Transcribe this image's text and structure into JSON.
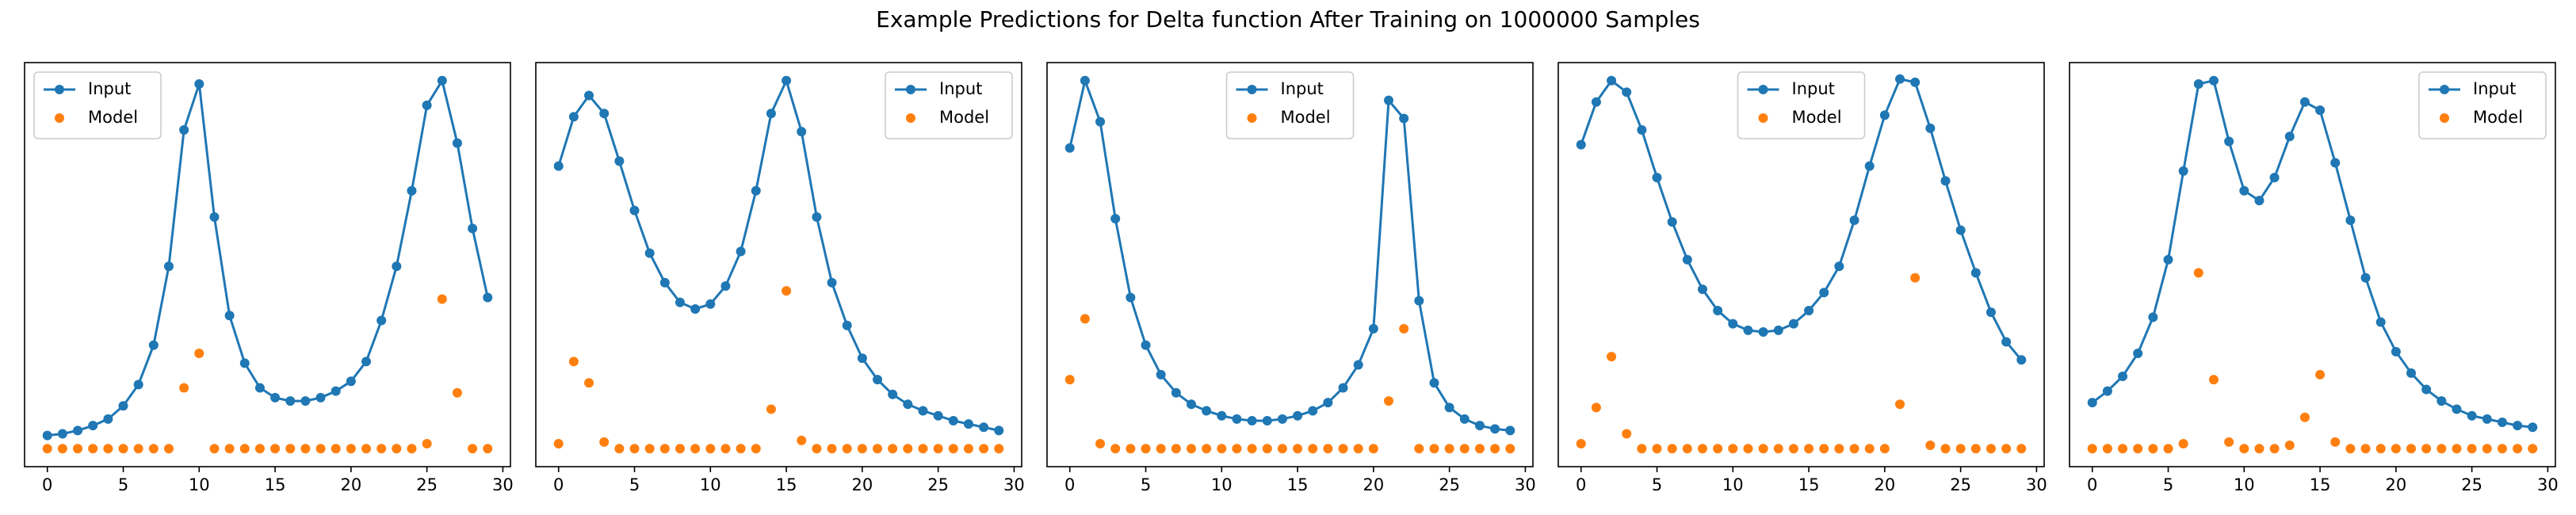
{
  "title": "Example Predictions for Delta function After Training on 1000000 Samples",
  "chart_data": [
    {
      "type": "line",
      "legend_loc": "upper left",
      "xlim": [
        -1.5,
        30.5
      ],
      "xticks": [
        0,
        5,
        10,
        15,
        20,
        25,
        30
      ],
      "ylim": [
        0,
        246
      ],
      "x": [
        0,
        1,
        2,
        3,
        4,
        5,
        6,
        7,
        8,
        9,
        10,
        11,
        12,
        13,
        14,
        15,
        16,
        17,
        18,
        19,
        20,
        21,
        22,
        23,
        24,
        25,
        26,
        27,
        28,
        29
      ],
      "series": [
        {
          "name": "Input",
          "color": "#1f77b4",
          "mode": "lines+markers",
          "values": [
            19,
            20,
            22,
            25,
            29,
            37,
            50,
            74,
            122,
            205,
            233,
            152,
            92,
            63,
            48,
            42,
            40,
            40,
            42,
            46,
            52,
            64,
            89,
            122,
            168,
            220,
            235,
            197,
            145,
            103
          ]
        },
        {
          "name": "Model",
          "color": "#ff7f0e",
          "mode": "markers",
          "values": [
            11,
            11,
            11,
            11,
            11,
            11,
            11,
            11,
            11,
            48,
            69,
            11,
            11,
            11,
            11,
            11,
            11,
            11,
            11,
            11,
            11,
            11,
            11,
            11,
            11,
            14,
            102,
            45,
            11,
            11
          ]
        }
      ]
    },
    {
      "type": "line",
      "legend_loc": "upper right",
      "xlim": [
        -1.5,
        30.5
      ],
      "xticks": [
        0,
        5,
        10,
        15,
        20,
        25,
        30
      ],
      "ylim": [
        0,
        246
      ],
      "x": [
        0,
        1,
        2,
        3,
        4,
        5,
        6,
        7,
        8,
        9,
        10,
        11,
        12,
        13,
        14,
        15,
        16,
        17,
        18,
        19,
        20,
        21,
        22,
        23,
        24,
        25,
        26,
        27,
        28,
        29
      ],
      "series": [
        {
          "name": "Input",
          "color": "#1f77b4",
          "mode": "lines+markers",
          "values": [
            183,
            213,
            226,
            215,
            186,
            156,
            130,
            112,
            100,
            96,
            99,
            110,
            131,
            168,
            215,
            235,
            204,
            152,
            112,
            86,
            66,
            53,
            44,
            38,
            34,
            31,
            28,
            26,
            24,
            22
          ]
        },
        {
          "name": "Model",
          "color": "#ff7f0e",
          "mode": "markers",
          "values": [
            14,
            64,
            51,
            15,
            11,
            11,
            11,
            11,
            11,
            11,
            11,
            11,
            11,
            11,
            35,
            107,
            16,
            11,
            11,
            11,
            11,
            11,
            11,
            11,
            11,
            11,
            11,
            11,
            11,
            11
          ]
        }
      ]
    },
    {
      "type": "line",
      "legend_loc": "upper center",
      "xlim": [
        -1.5,
        30.5
      ],
      "xticks": [
        0,
        5,
        10,
        15,
        20,
        25,
        30
      ],
      "ylim": [
        0,
        246
      ],
      "x": [
        0,
        1,
        2,
        3,
        4,
        5,
        6,
        7,
        8,
        9,
        10,
        11,
        12,
        13,
        14,
        15,
        16,
        17,
        18,
        19,
        20,
        21,
        22,
        23,
        24,
        25,
        26,
        27,
        28,
        29
      ],
      "series": [
        {
          "name": "Input",
          "color": "#1f77b4",
          "mode": "lines+markers",
          "values": [
            194,
            235,
            210,
            151,
            103,
            74,
            56,
            45,
            38,
            34,
            31,
            29,
            28,
            28,
            29,
            31,
            34,
            39,
            48,
            62,
            84,
            223,
            212,
            101,
            51,
            36,
            29,
            25,
            23,
            22
          ]
        },
        {
          "name": "Model",
          "color": "#ff7f0e",
          "mode": "markers",
          "values": [
            53,
            90,
            14,
            11,
            11,
            11,
            11,
            11,
            11,
            11,
            11,
            11,
            11,
            11,
            11,
            11,
            11,
            11,
            11,
            11,
            11,
            40,
            84,
            11,
            11,
            11,
            11,
            11,
            11,
            11
          ]
        }
      ]
    },
    {
      "type": "line",
      "legend_loc": "upper center",
      "xlim": [
        -1.5,
        30.5
      ],
      "xticks": [
        0,
        5,
        10,
        15,
        20,
        25,
        30
      ],
      "ylim": [
        0,
        246
      ],
      "x": [
        0,
        1,
        2,
        3,
        4,
        5,
        6,
        7,
        8,
        9,
        10,
        11,
        12,
        13,
        14,
        15,
        16,
        17,
        18,
        19,
        20,
        21,
        22,
        23,
        24,
        25,
        26,
        27,
        28,
        29
      ],
      "series": [
        {
          "name": "Input",
          "color": "#1f77b4",
          "mode": "lines+markers",
          "values": [
            196,
            222,
            235,
            228,
            205,
            176,
            149,
            126,
            108,
            95,
            87,
            83,
            82,
            83,
            87,
            95,
            106,
            122,
            150,
            183,
            214,
            236,
            234,
            206,
            174,
            144,
            118,
            94,
            76,
            65
          ]
        },
        {
          "name": "Model",
          "color": "#ff7f0e",
          "mode": "markers",
          "values": [
            14,
            36,
            67,
            20,
            11,
            11,
            11,
            11,
            11,
            11,
            11,
            11,
            11,
            11,
            11,
            11,
            11,
            11,
            11,
            11,
            11,
            38,
            115,
            13,
            11,
            11,
            11,
            11,
            11,
            11
          ]
        }
      ]
    },
    {
      "type": "line",
      "legend_loc": "upper right",
      "xlim": [
        -1.5,
        30.5
      ],
      "xticks": [
        0,
        5,
        10,
        15,
        20,
        25,
        30
      ],
      "ylim": [
        0,
        246
      ],
      "x": [
        0,
        1,
        2,
        3,
        4,
        5,
        6,
        7,
        8,
        9,
        10,
        11,
        12,
        13,
        14,
        15,
        16,
        17,
        18,
        19,
        20,
        21,
        22,
        23,
        24,
        25,
        26,
        27,
        28,
        29
      ],
      "series": [
        {
          "name": "Input",
          "color": "#1f77b4",
          "mode": "lines+markers",
          "values": [
            39,
            46,
            55,
            69,
            91,
            126,
            180,
            233,
            235,
            198,
            168,
            162,
            176,
            201,
            222,
            217,
            185,
            150,
            115,
            88,
            70,
            57,
            47,
            40,
            35,
            31,
            29,
            27,
            25,
            24
          ]
        },
        {
          "name": "Model",
          "color": "#ff7f0e",
          "mode": "markers",
          "values": [
            11,
            11,
            11,
            11,
            11,
            11,
            14,
            118,
            53,
            15,
            11,
            11,
            11,
            13,
            30,
            56,
            15,
            11,
            11,
            11,
            11,
            11,
            11,
            11,
            11,
            11,
            11,
            11,
            11,
            11
          ]
        }
      ]
    }
  ]
}
